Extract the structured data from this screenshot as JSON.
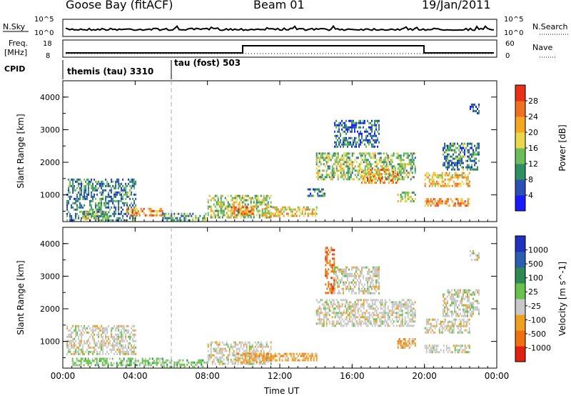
{
  "header": {
    "station": "Goose Bay (fitACF)",
    "beam": "Beam 01",
    "date": "19/Jan/2011"
  },
  "noise_panel": {
    "left_label": "N.Sky",
    "right_label": "N.Search",
    "left_ticks": [
      "10^5",
      "10^0"
    ],
    "right_ticks": [
      "10^5",
      "10^0"
    ]
  },
  "freq_panel": {
    "left_label_1": "Freq.",
    "left_label_2": "[MHz]",
    "right_label": "Nave",
    "left_ticks": [
      "18",
      "8"
    ],
    "right_ticks": [
      "60",
      "0"
    ]
  },
  "cpid_panel": {
    "label": "CPID",
    "modes": [
      {
        "name": "themis (tau) 3310",
        "start_hour": 0
      },
      {
        "name": "tau (fost) 503",
        "start_hour": 6.0
      }
    ]
  },
  "colors": {
    "power_scale": [
      "#1a1aff",
      "#2a4fb5",
      "#2e8f62",
      "#6bbf5a",
      "#e8d84a",
      "#f5a623",
      "#f07020",
      "#e83018"
    ],
    "velocity_scale": [
      "#2030c0",
      "#2a5fb0",
      "#2e8a55",
      "#66c24a",
      "#c8c8c8",
      "#f0a020",
      "#f07010",
      "#e02010"
    ]
  },
  "chart_data": [
    {
      "type": "heatmap",
      "title": "",
      "xlabel": "",
      "ylabel": "Slant Range [km]",
      "xlim": [
        0,
        24
      ],
      "ylim": [
        180,
        4500
      ],
      "x_tick_labels": [
        "00:00",
        "04:00",
        "08:00",
        "12:00",
        "16:00",
        "20:00",
        "00:00"
      ],
      "y_tick_labels": [
        "1000",
        "2000",
        "3000",
        "4000"
      ],
      "colorbar": {
        "label": "Power [dB]",
        "tick_labels": [
          "4",
          "8",
          "12",
          "16",
          "20",
          "24",
          "28"
        ]
      },
      "regions": [
        {
          "x": [
            0.2,
            4.0
          ],
          "y": [
            250,
            1500
          ],
          "level": 0.3
        },
        {
          "x": [
            1.0,
            2.5
          ],
          "y": [
            300,
            500
          ],
          "level": 0.5
        },
        {
          "x": [
            3.5,
            5.5
          ],
          "y": [
            380,
            600
          ],
          "level": 0.75
        },
        {
          "x": [
            5.5,
            8.0
          ],
          "y": [
            250,
            450
          ],
          "level": 0.35
        },
        {
          "x": [
            8.0,
            11.5
          ],
          "y": [
            300,
            1000
          ],
          "level": 0.5
        },
        {
          "x": [
            9.3,
            10.5
          ],
          "y": [
            400,
            650
          ],
          "level": 0.8
        },
        {
          "x": [
            11.0,
            14.0
          ],
          "y": [
            380,
            650
          ],
          "level": 0.6
        },
        {
          "x": [
            13.5,
            14.5
          ],
          "y": [
            1000,
            1200
          ],
          "level": 0.3
        },
        {
          "x": [
            14.0,
            19.5
          ],
          "y": [
            1500,
            2300
          ],
          "level": 0.45
        },
        {
          "x": [
            16.5,
            18.5
          ],
          "y": [
            1400,
            1800
          ],
          "level": 0.7
        },
        {
          "x": [
            15.0,
            17.5
          ],
          "y": [
            2500,
            3300
          ],
          "level": 0.25
        },
        {
          "x": [
            18.5,
            19.5
          ],
          "y": [
            800,
            1100
          ],
          "level": 0.5
        },
        {
          "x": [
            20.0,
            22.5
          ],
          "y": [
            650,
            900
          ],
          "level": 0.75
        },
        {
          "x": [
            20.0,
            22.5
          ],
          "y": [
            1300,
            1700
          ],
          "level": 0.65
        },
        {
          "x": [
            21.0,
            23.0
          ],
          "y": [
            1800,
            2600
          ],
          "level": 0.3
        },
        {
          "x": [
            22.5,
            23.0
          ],
          "y": [
            3500,
            3800
          ],
          "level": 0.2
        }
      ]
    },
    {
      "type": "heatmap",
      "title": "",
      "xlabel": "Time UT",
      "ylabel": "Slant Range [km]",
      "xlim": [
        0,
        24
      ],
      "ylim": [
        180,
        4500
      ],
      "x_tick_labels": [
        "00:00",
        "04:00",
        "08:00",
        "12:00",
        "16:00",
        "20:00",
        "00:00"
      ],
      "y_tick_labels": [
        "1000",
        "2000",
        "3000",
        "4000"
      ],
      "colorbar": {
        "label": "Velocity [m s^-1]",
        "tick_labels": [
          "1000",
          "500",
          "100",
          "25",
          "-25",
          "-100",
          "-500",
          "-1000"
        ]
      },
      "regions": [
        {
          "x": [
            0.2,
            4.0
          ],
          "y": [
            600,
            1500
          ],
          "level": 4
        },
        {
          "x": [
            0.5,
            5.5
          ],
          "y": [
            250,
            500
          ],
          "level": 3
        },
        {
          "x": [
            5.5,
            8.0
          ],
          "y": [
            250,
            450
          ],
          "level": 3
        },
        {
          "x": [
            8.0,
            11.5
          ],
          "y": [
            300,
            1000
          ],
          "level": 4
        },
        {
          "x": [
            9.5,
            11.5
          ],
          "y": [
            350,
            650
          ],
          "level": 5
        },
        {
          "x": [
            11.0,
            14.0
          ],
          "y": [
            400,
            650
          ],
          "level": 5
        },
        {
          "x": [
            14.0,
            19.5
          ],
          "y": [
            1500,
            2300
          ],
          "level": 4
        },
        {
          "x": [
            14.5,
            15.0
          ],
          "y": [
            2500,
            3900
          ],
          "level": 6
        },
        {
          "x": [
            15.0,
            17.5
          ],
          "y": [
            2500,
            3300
          ],
          "level": 4
        },
        {
          "x": [
            18.5,
            19.5
          ],
          "y": [
            800,
            1100
          ],
          "level": 5
        },
        {
          "x": [
            20.0,
            22.5
          ],
          "y": [
            650,
            900
          ],
          "level": 4
        },
        {
          "x": [
            20.0,
            22.5
          ],
          "y": [
            1300,
            1700
          ],
          "level": 4
        },
        {
          "x": [
            21.0,
            23.0
          ],
          "y": [
            1800,
            2600
          ],
          "level": 4
        },
        {
          "x": [
            22.5,
            23.0
          ],
          "y": [
            3500,
            3800
          ],
          "level": 4
        }
      ]
    }
  ]
}
